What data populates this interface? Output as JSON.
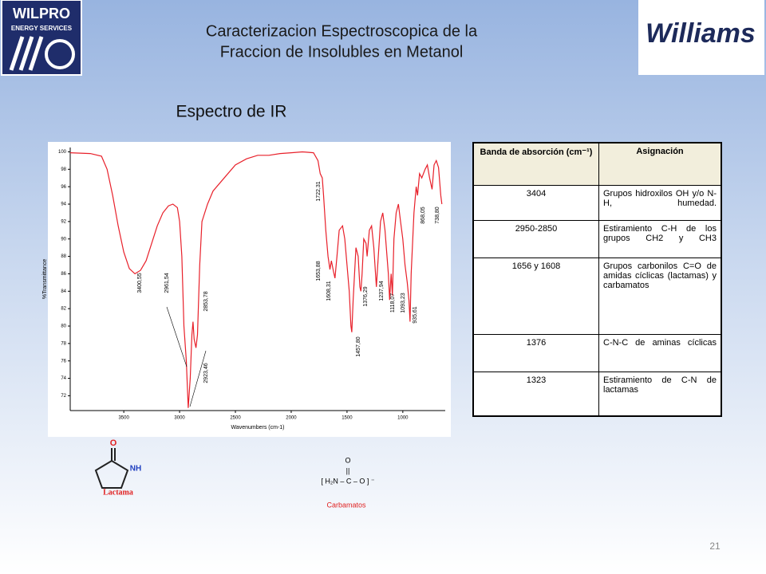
{
  "header": {
    "title_lines": [
      "Caracterizacion Espectroscopica de la",
      "Fraccion de Insolubles en Metanol"
    ],
    "logo_left": {
      "name": "WILPRO",
      "tagline": "ENERGY SERVICES"
    },
    "logo_right": "Williams"
  },
  "subtitle": "Espectro de IR",
  "chart_data": {
    "type": "line",
    "x_label": "Wavenumbers (cm-1)",
    "y_label": "%Transmittance",
    "color": "#e8202a",
    "xlim": [
      3980,
      620
    ],
    "ylim": [
      70.3,
      100.5
    ],
    "xticks": [
      3500,
      3000,
      2500,
      2000,
      1500,
      1000
    ],
    "yticks": [
      72,
      74,
      76,
      78,
      80,
      82,
      84,
      86,
      88,
      90,
      92,
      94,
      96,
      98,
      100
    ],
    "x": [
      3980,
      3800,
      3700,
      3650,
      3600,
      3550,
      3500,
      3450,
      3400,
      3350,
      3300,
      3250,
      3200,
      3150,
      3100,
      3060,
      3020,
      3000,
      2980,
      2961,
      2940,
      2923,
      2905,
      2890,
      2880,
      2870,
      2853,
      2840,
      2820,
      2800,
      2750,
      2700,
      2600,
      2500,
      2400,
      2300,
      2200,
      2100,
      2000,
      1900,
      1800,
      1760,
      1740,
      1722,
      1710,
      1690,
      1670,
      1653,
      1640,
      1620,
      1608,
      1590,
      1570,
      1540,
      1520,
      1500,
      1480,
      1465,
      1457,
      1445,
      1420,
      1400,
      1385,
      1376,
      1365,
      1350,
      1330,
      1320,
      1300,
      1280,
      1260,
      1237,
      1220,
      1200,
      1180,
      1160,
      1130,
      1118,
      1105,
      1093,
      1080,
      1060,
      1040,
      1020,
      1000,
      980,
      960,
      945,
      935,
      925,
      900,
      880,
      868,
      850,
      830,
      800,
      780,
      760,
      738,
      720,
      700,
      680,
      660,
      650
    ],
    "values": [
      99.9,
      99.8,
      99.5,
      98,
      95,
      91.5,
      88.5,
      86.6,
      86.0,
      86.4,
      87.5,
      89.5,
      91.5,
      93,
      93.8,
      94,
      93.6,
      92,
      88,
      80,
      76,
      70.6,
      74,
      79,
      80.5,
      78.5,
      77.5,
      79,
      87,
      92,
      94,
      95.5,
      97,
      98.5,
      99.2,
      99.6,
      99.6,
      99.8,
      99.9,
      100,
      99.9,
      99,
      97.5,
      97,
      95,
      91,
      88,
      86.5,
      87.5,
      86.2,
      85.5,
      88,
      91,
      91.5,
      90,
      87,
      84,
      80,
      79.3,
      83,
      89,
      88,
      84.5,
      84,
      86,
      90,
      89.5,
      88,
      91,
      91.5,
      89,
      84.5,
      88,
      92,
      93,
      91,
      86,
      83,
      86,
      83.5,
      90,
      93,
      94,
      92,
      90,
      87,
      85,
      83,
      80.5,
      86,
      93,
      96,
      95,
      97.5,
      97,
      98,
      98.5,
      97,
      95.7,
      98.5,
      99,
      98.2,
      95,
      94
    ],
    "annotations": [
      "3400,55",
      "2961,54",
      "2923,46",
      "2853,78",
      "1722,31",
      "1653,88",
      "1608,31",
      "1457,80",
      "1376,29",
      "1237,94",
      "1118,07",
      "1093,23",
      "935,61",
      "868,05",
      "738,80"
    ]
  },
  "table": {
    "columns": [
      "Banda de absorción (cm⁻¹)",
      "Asignación"
    ],
    "rows": [
      [
        "3404",
        "Grupos hidroxilos OH y/o N-H, humedad."
      ],
      [
        "2950-2850",
        "Estiramiento C-H de los grupos CH2 y CH3"
      ],
      [
        "1656 y 1608",
        "Grupos carbonilos C=O de amidas cíclicas (lactamas) y carbamatos"
      ],
      [
        "1376",
        "C-N-C de aminas cíclicas"
      ],
      [
        "1323",
        "Estiramiento de C-N de lactamas"
      ]
    ]
  },
  "structures": {
    "lactama": {
      "label": "Lactama",
      "atoms": [
        "O",
        "NH"
      ]
    },
    "carbamato": {
      "lines": [
        "O",
        "||",
        "[ H₂N – C – O ] ⁻"
      ],
      "label": "Carbamatos"
    }
  },
  "page_number": "21"
}
